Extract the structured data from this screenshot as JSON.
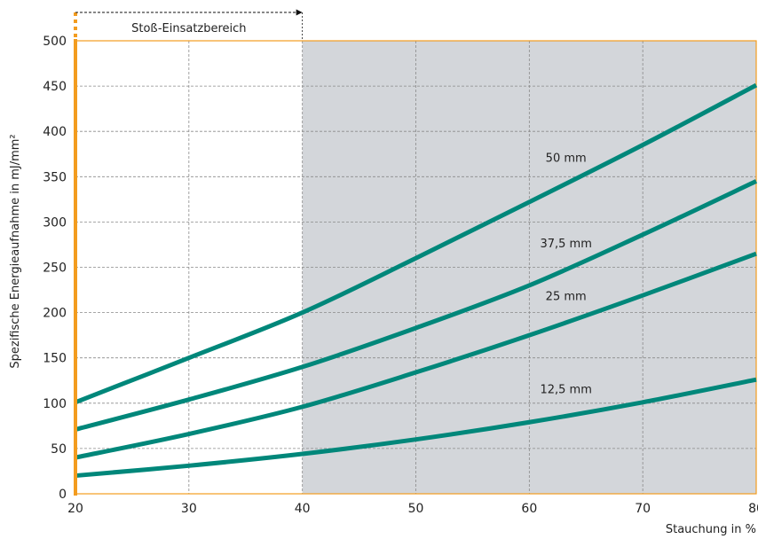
{
  "chart_data": {
    "type": "line",
    "xlabel": "Stauchung in %",
    "ylabel": "Spezifische Energieaufnahme in mJ/mm²",
    "xlim": [
      20,
      80
    ],
    "ylim": [
      0,
      500
    ],
    "x_ticks": [
      20,
      30,
      40,
      50,
      60,
      70,
      80
    ],
    "y_ticks": [
      0,
      50,
      100,
      150,
      200,
      250,
      300,
      350,
      400,
      450,
      500
    ],
    "grid": true,
    "shaded_region": {
      "x_from": 40,
      "x_to": 80,
      "color": "#d3d6da"
    },
    "range_annotation": {
      "label": "Stoß-Einsatzbereich",
      "x_from": 20,
      "x_to": 40
    },
    "series": [
      {
        "name": "50 mm",
        "x": [
          20,
          30,
          40,
          50,
          60,
          70,
          80
        ],
        "values": [
          101,
          150,
          200,
          260,
          322,
          385,
          451
        ]
      },
      {
        "name": "37,5 mm",
        "x": [
          20,
          30,
          40,
          50,
          60,
          70,
          80
        ],
        "values": [
          71,
          104,
          140,
          183,
          230,
          286,
          345
        ]
      },
      {
        "name": "25 mm",
        "x": [
          20,
          30,
          40,
          50,
          60,
          70,
          80
        ],
        "values": [
          40,
          66,
          96,
          134,
          175,
          219,
          265
        ]
      },
      {
        "name": "12,5 mm",
        "x": [
          20,
          30,
          40,
          50,
          60,
          70,
          80
        ],
        "values": [
          20,
          31,
          44,
          60,
          79,
          101,
          126
        ]
      }
    ],
    "colors": {
      "line": "#00877a",
      "axis": "#f39c1f",
      "grid": "#8a8a8a"
    }
  }
}
